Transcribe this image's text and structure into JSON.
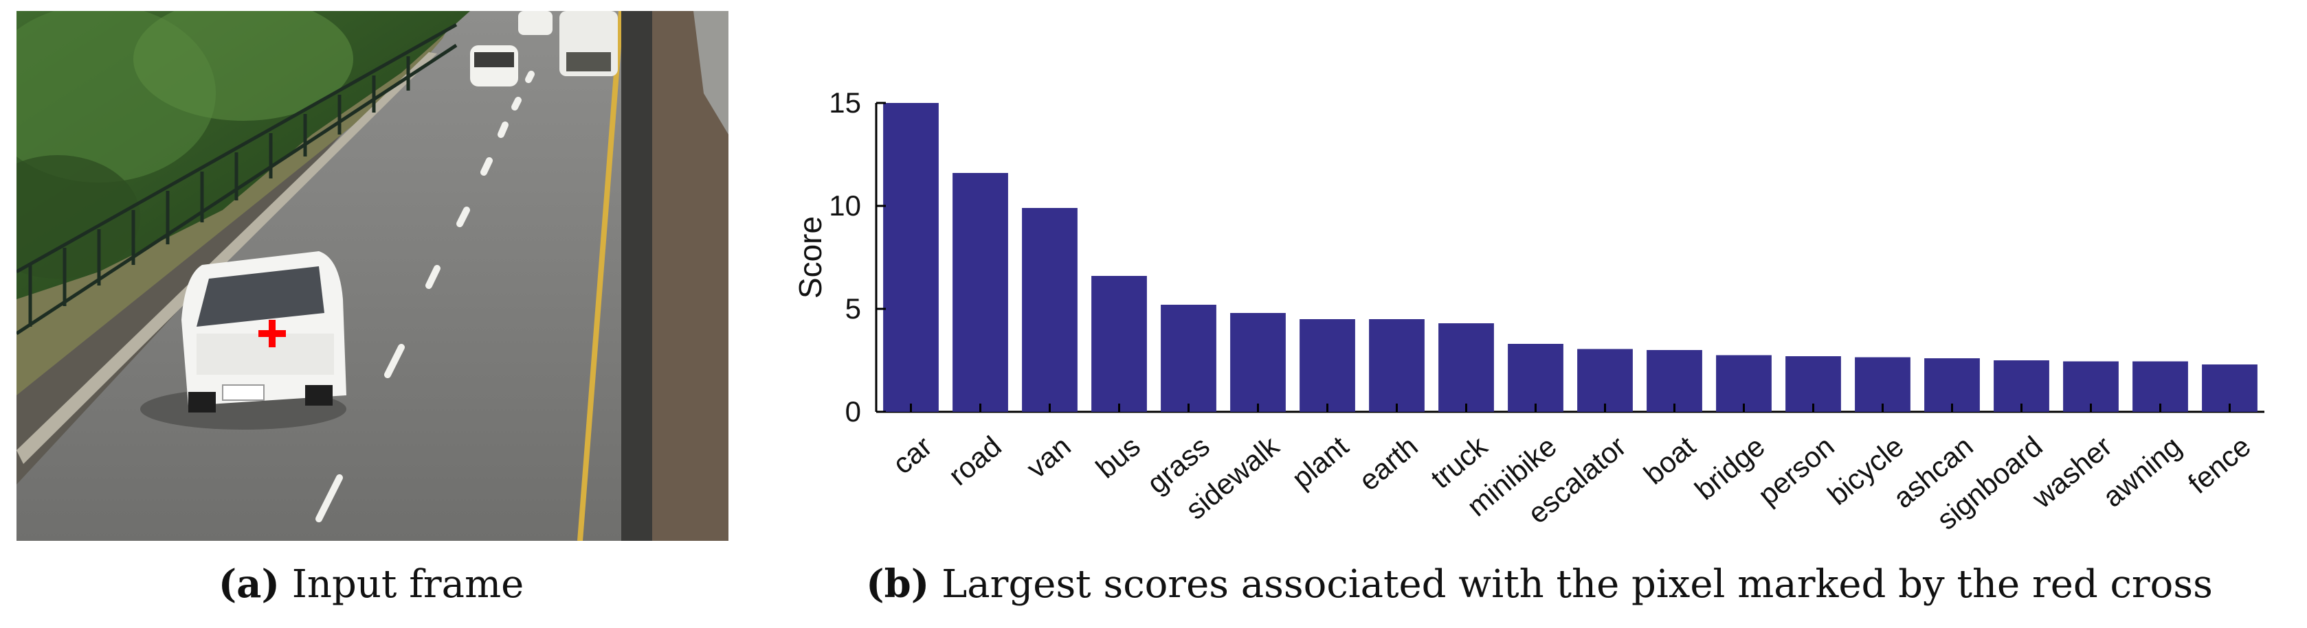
{
  "panels": {
    "a": {
      "tag": "(a)",
      "caption": "Input frame"
    },
    "b": {
      "tag": "(b)",
      "caption": "Largest scores associated with the pixel marked by the red cross"
    }
  },
  "colors": {
    "bar": "#352F8C",
    "marker": "#FF0000"
  },
  "chart_data": {
    "type": "bar",
    "title": "",
    "xlabel": "",
    "ylabel": "Score",
    "ylim": [
      0,
      15
    ],
    "yticks": [
      0,
      5,
      10,
      15
    ],
    "grid": false,
    "categories": [
      "car",
      "road",
      "van",
      "bus",
      "grass",
      "sidewalk",
      "plant",
      "earth",
      "truck",
      "minibike",
      "escalator",
      "boat",
      "bridge",
      "person",
      "bicycle",
      "ashcan",
      "signboard",
      "washer",
      "awning",
      "fence"
    ],
    "values": [
      15.0,
      11.6,
      9.9,
      6.6,
      5.2,
      4.8,
      4.5,
      4.5,
      4.3,
      3.3,
      3.05,
      3.0,
      2.75,
      2.7,
      2.65,
      2.6,
      2.5,
      2.45,
      2.45,
      2.3
    ]
  }
}
